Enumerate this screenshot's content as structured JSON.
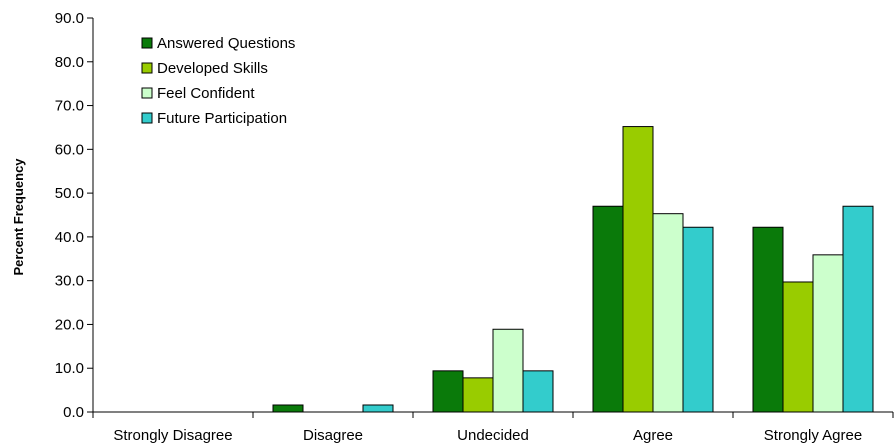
{
  "chart_data": {
    "type": "bar",
    "title": "",
    "xlabel": "",
    "ylabel": "Percent Frequency",
    "ylim": [
      0,
      90
    ],
    "yticks": [
      "0.0",
      "10.0",
      "20.0",
      "30.0",
      "40.0",
      "50.0",
      "60.0",
      "70.0",
      "80.0",
      "90.0"
    ],
    "categories": [
      "Strongly Disagree",
      "Disagree",
      "Undecided",
      "Agree",
      "Strongly Agree"
    ],
    "legend_position": "top-left",
    "grid": false,
    "series": [
      {
        "name": "Answered Questions",
        "color": "#0a7a0a",
        "values": [
          0,
          1.6,
          9.4,
          47.0,
          42.2
        ]
      },
      {
        "name": "Developed Skills",
        "color": "#99cc00",
        "values": [
          0,
          0,
          7.8,
          65.2,
          29.7
        ]
      },
      {
        "name": "Feel Confident",
        "color": "#ccffcc",
        "values": [
          0,
          0,
          18.9,
          45.3,
          35.9
        ]
      },
      {
        "name": "Future Participation",
        "color": "#33cccc",
        "values": [
          0,
          1.6,
          9.4,
          42.2,
          47.0
        ]
      }
    ]
  }
}
